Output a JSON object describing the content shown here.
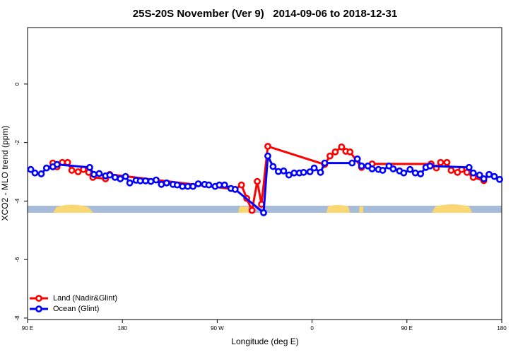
{
  "chart_data": {
    "type": "line",
    "title": "25S-20S November (Ver 9)   2014-09-06 to 2018-12-31",
    "x_label": "Longitude (deg E)",
    "y_label": "XCO2 - MLO trend (ppm)",
    "xlim": [
      90,
      540
    ],
    "xticks": [
      {
        "value": 90,
        "label": "90 E"
      },
      180,
      {
        "value": 270,
        "label": "90 W"
      },
      {
        "value": 360,
        "label": "0"
      },
      {
        "value": 450,
        "label": "90 E"
      },
      {
        "value": 540,
        "label": "180"
      }
    ],
    "ylim": [
      -8.05,
      1.93
    ],
    "yticks": [
      0,
      -2,
      -4,
      -6,
      -8
    ],
    "legend": "bottom-left",
    "series": [
      {
        "name": "Land (Nadir&Glint)",
        "color": "#ff0000",
        "x": [
          114,
          118,
          123,
          128,
          132,
          138,
          143,
          148,
          152,
          164,
          168,
          287,
          293,
          298,
          303,
          308,
          312,
          318,
          372,
          377,
          382,
          388,
          392,
          396,
          407,
          417,
          473,
          478,
          482,
          488,
          492,
          498,
          502,
          507,
          513,
          523,
          528
        ],
        "values": [
          -2.7,
          -2.83,
          -2.68,
          -2.68,
          -2.95,
          -3.0,
          -2.92,
          -3.02,
          -3.19,
          -3.24,
          -3.09,
          -3.6,
          -3.45,
          -3.91,
          -4.32,
          -3.33,
          -4.11,
          -2.13,
          -2.75,
          -2.46,
          -2.32,
          -2.15,
          -2.3,
          -2.32,
          -2.85,
          -2.73,
          -2.73,
          -2.87,
          -2.68,
          -2.68,
          -2.95,
          -3.02,
          -2.92,
          -3.02,
          -3.19,
          -3.3,
          -3.09
        ]
      },
      {
        "name": "Ocean (Glint)",
        "color": "#0000ff",
        "x": [
          93,
          97,
          103,
          108,
          114,
          118,
          149,
          153,
          158,
          164,
          168,
          173,
          178,
          183,
          187,
          193,
          197,
          202,
          207,
          212,
          217,
          222,
          228,
          232,
          237,
          242,
          247,
          252,
          258,
          262,
          268,
          272,
          277,
          283,
          287,
          314,
          318,
          323,
          328,
          333,
          338,
          343,
          348,
          352,
          358,
          362,
          368,
          372,
          398,
          403,
          407,
          413,
          417,
          423,
          427,
          433,
          437,
          443,
          447,
          453,
          458,
          463,
          468,
          472,
          509,
          513,
          519,
          523,
          528,
          533,
          538
        ],
        "values": [
          -2.92,
          -3.04,
          -3.07,
          -2.87,
          -2.83,
          -2.75,
          -2.85,
          -3.09,
          -3.06,
          -3.14,
          -3.11,
          -3.19,
          -3.24,
          -3.16,
          -3.38,
          -3.29,
          -3.31,
          -3.31,
          -3.33,
          -3.28,
          -3.43,
          -3.38,
          -3.43,
          -3.45,
          -3.5,
          -3.5,
          -3.5,
          -3.41,
          -3.43,
          -3.45,
          -3.5,
          -3.45,
          -3.45,
          -3.57,
          -3.6,
          -4.4,
          -2.46,
          -2.82,
          -2.99,
          -2.97,
          -3.11,
          -3.04,
          -3.04,
          -3.02,
          -3.0,
          -2.87,
          -3.02,
          -2.7,
          -2.7,
          -2.56,
          -2.8,
          -2.8,
          -2.9,
          -2.92,
          -2.95,
          -2.8,
          -2.9,
          -2.97,
          -3.04,
          -2.92,
          -3.04,
          -3.07,
          -2.85,
          -2.8,
          -2.85,
          -3.04,
          -3.11,
          -3.24,
          -3.09,
          -3.16,
          -3.26
        ]
      }
    ]
  }
}
